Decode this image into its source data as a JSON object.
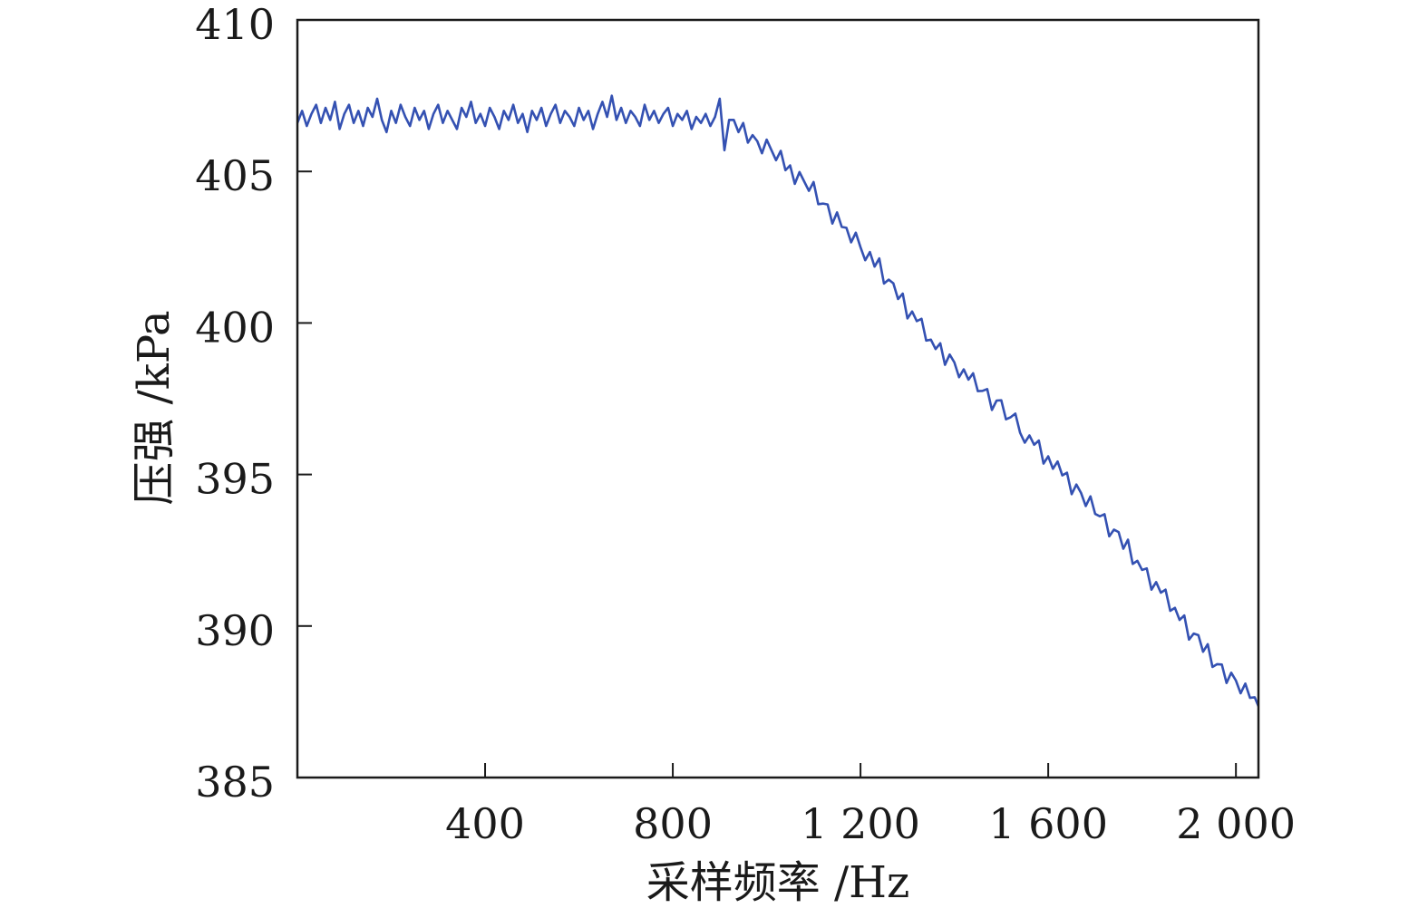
{
  "chart_data": {
    "type": "line",
    "title": "",
    "xlabel": "采样频率 /Hz",
    "ylabel": "压强 /kPa",
    "xlim": [
      0,
      2048
    ],
    "ylim": [
      385,
      410
    ],
    "x_ticks": [
      400,
      800,
      1200,
      1600,
      2000
    ],
    "x_tick_labels": [
      "400",
      "800",
      "1 200",
      "1 600",
      "2 000"
    ],
    "y_ticks": [
      385,
      390,
      395,
      400,
      405,
      410
    ],
    "y_tick_labels": [
      "385",
      "390",
      "395",
      "400",
      "405",
      "410"
    ],
    "grid": false,
    "legend": "none",
    "series": [
      {
        "color": "#3451b2",
        "x": [
          0,
          10,
          20,
          30,
          40,
          50,
          60,
          70,
          80,
          90,
          100,
          110,
          120,
          130,
          140,
          150,
          160,
          170,
          180,
          190,
          200,
          210,
          220,
          230,
          240,
          250,
          260,
          270,
          280,
          290,
          300,
          310,
          320,
          330,
          340,
          350,
          360,
          370,
          380,
          390,
          400,
          410,
          420,
          430,
          440,
          450,
          460,
          470,
          480,
          490,
          500,
          510,
          520,
          530,
          540,
          550,
          560,
          570,
          580,
          590,
          600,
          610,
          620,
          630,
          640,
          650,
          660,
          670,
          680,
          690,
          700,
          710,
          720,
          730,
          740,
          750,
          760,
          770,
          780,
          790,
          800,
          810,
          820,
          830,
          840,
          850,
          860,
          870,
          880,
          890,
          900,
          910,
          920,
          930,
          940,
          950,
          960,
          970,
          980,
          990,
          1000,
          1010,
          1020,
          1030,
          1040,
          1050,
          1060,
          1070,
          1080,
          1090,
          1100,
          1110,
          1120,
          1130,
          1140,
          1150,
          1160,
          1170,
          1180,
          1190,
          1200,
          1210,
          1220,
          1230,
          1240,
          1250,
          1260,
          1270,
          1280,
          1290,
          1300,
          1310,
          1320,
          1330,
          1340,
          1350,
          1360,
          1370,
          1380,
          1390,
          1400,
          1410,
          1420,
          1430,
          1440,
          1450,
          1460,
          1470,
          1480,
          1490,
          1500,
          1510,
          1520,
          1530,
          1540,
          1550,
          1560,
          1570,
          1580,
          1590,
          1600,
          1610,
          1620,
          1630,
          1640,
          1650,
          1660,
          1670,
          1680,
          1690,
          1700,
          1710,
          1720,
          1730,
          1740,
          1750,
          1760,
          1770,
          1780,
          1790,
          1800,
          1810,
          1820,
          1830,
          1840,
          1850,
          1860,
          1870,
          1880,
          1890,
          1900,
          1910,
          1920,
          1930,
          1940,
          1950,
          1960,
          1970,
          1980,
          1990,
          2000,
          2010,
          2020,
          2030,
          2040,
          2048
        ],
        "y": [
          406.6,
          407.0,
          406.5,
          406.9,
          407.2,
          406.6,
          407.1,
          406.7,
          407.3,
          406.4,
          406.9,
          407.2,
          406.6,
          407.0,
          406.5,
          407.1,
          406.8,
          407.4,
          406.7,
          406.3,
          407.0,
          406.6,
          407.2,
          406.8,
          406.5,
          407.1,
          406.7,
          407.0,
          406.4,
          406.9,
          407.2,
          406.6,
          407.0,
          406.7,
          406.4,
          407.1,
          406.8,
          407.3,
          406.6,
          406.9,
          406.5,
          407.1,
          406.8,
          406.4,
          407.0,
          406.7,
          407.2,
          406.6,
          406.9,
          406.3,
          407.0,
          406.7,
          407.1,
          406.5,
          406.9,
          407.2,
          406.6,
          407.0,
          406.8,
          406.5,
          407.1,
          406.7,
          407.0,
          406.4,
          406.9,
          407.3,
          406.8,
          407.5,
          406.7,
          407.1,
          406.6,
          407.0,
          406.8,
          406.5,
          407.2,
          406.7,
          407.0,
          406.6,
          406.9,
          407.1,
          406.5,
          406.9,
          406.7,
          407.0,
          406.4,
          406.8,
          406.6,
          406.9,
          406.5,
          406.8,
          407.4,
          405.7,
          406.7,
          406.7,
          406.3,
          406.6,
          405.95,
          406.2,
          406.0,
          405.6,
          406.05,
          405.71,
          405.37,
          405.68,
          405.04,
          405.2,
          404.59,
          404.98,
          404.67,
          404.36,
          404.65,
          403.92,
          403.94,
          403.91,
          403.28,
          403.65,
          403.17,
          403.14,
          402.66,
          402.98,
          402.5,
          402.07,
          402.34,
          401.86,
          402.13,
          401.3,
          401.43,
          401.31,
          400.79,
          400.97,
          400.15,
          400.38,
          400.06,
          400.14,
          399.42,
          399.45,
          399.14,
          399.33,
          398.62,
          398.96,
          398.7,
          398.21,
          398.47,
          398.13,
          398.34,
          397.75,
          397.76,
          397.82,
          397.13,
          397.44,
          397.45,
          396.82,
          396.89,
          397.01,
          396.38,
          396.05,
          396.29,
          395.98,
          396.12,
          395.36,
          395.6,
          395.19,
          395.43,
          394.97,
          395.06,
          394.35,
          394.67,
          394.39,
          393.96,
          394.28,
          393.7,
          393.62,
          393.69,
          392.96,
          393.18,
          393.1,
          392.55,
          392.85,
          392.05,
          392.15,
          391.85,
          391.9,
          391.2,
          391.45,
          391.1,
          391.2,
          390.5,
          390.6,
          390.2,
          390.35,
          389.55,
          389.75,
          389.7,
          389.15,
          389.4,
          388.65,
          388.74,
          388.73,
          388.12,
          388.46,
          388.2,
          387.78,
          388.1,
          387.63,
          387.65,
          387.35
        ]
      }
    ]
  }
}
